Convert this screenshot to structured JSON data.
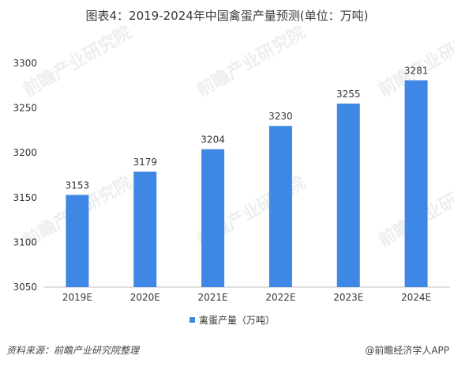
{
  "title": "图表4：2019-2024年中国禽蛋产量预测(单位：万吨)",
  "footer": {
    "source": "资料来源：前瞻产业研究院整理",
    "brand": "@前瞻经济学人APP"
  },
  "watermark": "前瞻产业研究院",
  "colors": {
    "bar": "#3f87e4",
    "axis": "#bfbfbf",
    "text": "#333333"
  },
  "chart_data": {
    "type": "bar",
    "title": "图表4：2019-2024年中国禽蛋产量预测(单位：万吨)",
    "categories": [
      "2019E",
      "2020E",
      "2021E",
      "2022E",
      "2023E",
      "2024E"
    ],
    "series": [
      {
        "name": "禽蛋产量（万吨）",
        "values": [
          3153,
          3179,
          3204,
          3230,
          3255,
          3281
        ]
      }
    ],
    "yticks": [
      3050,
      3100,
      3150,
      3200,
      3250,
      3300
    ],
    "ylim": [
      3050,
      3300
    ],
    "xlabel": "",
    "ylabel": "",
    "grid": false,
    "legend": "bottom"
  }
}
